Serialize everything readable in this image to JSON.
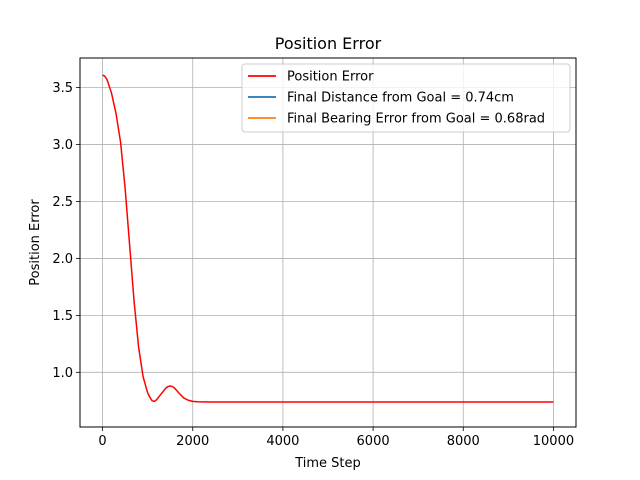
{
  "chart_data": {
    "type": "line",
    "title": "Position Error",
    "xlabel": "Time Step",
    "ylabel": "Position Error",
    "xlim": [
      -500,
      10500
    ],
    "ylim": [
      0.52,
      3.76
    ],
    "xticks": [
      0,
      2000,
      4000,
      6000,
      8000,
      10000
    ],
    "xtick_labels": [
      "0",
      "2000",
      "4000",
      "6000",
      "8000",
      "10000"
    ],
    "yticks": [
      1.0,
      1.5,
      2.0,
      2.5,
      3.0,
      3.5
    ],
    "ytick_labels": [
      "1.0",
      "1.5",
      "2.0",
      "2.5",
      "3.0",
      "3.5"
    ],
    "grid": true,
    "legend_position": "top-right",
    "series": [
      {
        "name": "Position Error",
        "color": "#ff0000",
        "x": [
          0,
          50,
          100,
          200,
          300,
          400,
          500,
          600,
          700,
          800,
          900,
          1000,
          1050,
          1100,
          1150,
          1200,
          1300,
          1400,
          1450,
          1500,
          1550,
          1600,
          1700,
          1800,
          1900,
          2000,
          2100,
          2200,
          2400,
          2600,
          3000,
          4000,
          5000,
          6000,
          7000,
          8000,
          9000,
          10000
        ],
        "y": [
          3.61,
          3.6,
          3.57,
          3.45,
          3.27,
          3.02,
          2.62,
          2.12,
          1.62,
          1.22,
          0.96,
          0.82,
          0.78,
          0.75,
          0.745,
          0.76,
          0.81,
          0.86,
          0.875,
          0.88,
          0.875,
          0.86,
          0.815,
          0.775,
          0.755,
          0.745,
          0.742,
          0.741,
          0.74,
          0.74,
          0.74,
          0.74,
          0.74,
          0.74,
          0.74,
          0.74,
          0.74,
          0.74
        ]
      },
      {
        "name": "Final Distance from Goal = 0.74cm",
        "color": "#1f77b4",
        "x": [],
        "y": []
      },
      {
        "name": "Final Bearing Error from Goal = 0.68rad",
        "color": "#ff7f0e",
        "x": [],
        "y": []
      }
    ]
  }
}
